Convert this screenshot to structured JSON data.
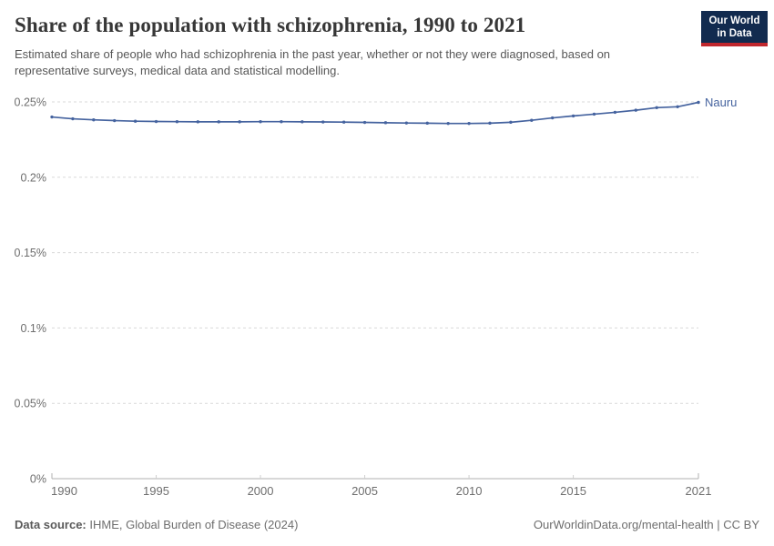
{
  "logo": {
    "line1": "Our World",
    "line2": "in Data",
    "bg_color": "#122b4f",
    "stripe_color": "#c0272d"
  },
  "chart_data": {
    "type": "line",
    "title": "Share of the population with schizophrenia, 1990 to 2021",
    "subtitle": "Estimated share of people who had schizophrenia in the past year, whether or not they were diagnosed, based on representative surveys, medical data and statistical modelling.",
    "x": [
      1990,
      1991,
      1992,
      1993,
      1994,
      1995,
      1996,
      1997,
      1998,
      1999,
      2000,
      2001,
      2002,
      2003,
      2004,
      2005,
      2006,
      2007,
      2008,
      2009,
      2010,
      2011,
      2012,
      2013,
      2014,
      2015,
      2016,
      2017,
      2018,
      2019,
      2020,
      2021
    ],
    "series": [
      {
        "name": "Nauru",
        "color": "#45639f",
        "values": [
          0.24,
          0.2388,
          0.2381,
          0.2376,
          0.2372,
          0.237,
          0.2369,
          0.2368,
          0.2368,
          0.2368,
          0.2369,
          0.2369,
          0.2368,
          0.2367,
          0.2366,
          0.2364,
          0.2362,
          0.236,
          0.2359,
          0.2357,
          0.2357,
          0.2359,
          0.2365,
          0.2378,
          0.2394,
          0.2407,
          0.2419,
          0.2431,
          0.2445,
          0.2462,
          0.2468,
          0.2497
        ]
      }
    ],
    "unit": "%",
    "xlabel": "",
    "ylabel": "",
    "ylim": [
      0,
      0.25
    ],
    "yticks": [
      {
        "value": 0,
        "label": "0%"
      },
      {
        "value": 0.05,
        "label": "0.05%"
      },
      {
        "value": 0.1,
        "label": "0.1%"
      },
      {
        "value": 0.15,
        "label": "0.15%"
      },
      {
        "value": 0.2,
        "label": "0.2%"
      },
      {
        "value": 0.25,
        "label": "0.25%"
      }
    ],
    "xticks": [
      {
        "value": 1990,
        "label": "1990"
      },
      {
        "value": 1995,
        "label": "1995"
      },
      {
        "value": 2000,
        "label": "2000"
      },
      {
        "value": 2005,
        "label": "2005"
      },
      {
        "value": 2010,
        "label": "2010"
      },
      {
        "value": 2015,
        "label": "2015"
      },
      {
        "value": 2021,
        "label": "2021"
      }
    ],
    "grid": "horizontal-dashed",
    "legend_position": "line-end-label"
  },
  "footer": {
    "datasource_label": "Data source:",
    "datasource_text": "IHME, Global Burden of Disease (2024)",
    "attribution": "OurWorldinData.org/mental-health | CC BY"
  }
}
